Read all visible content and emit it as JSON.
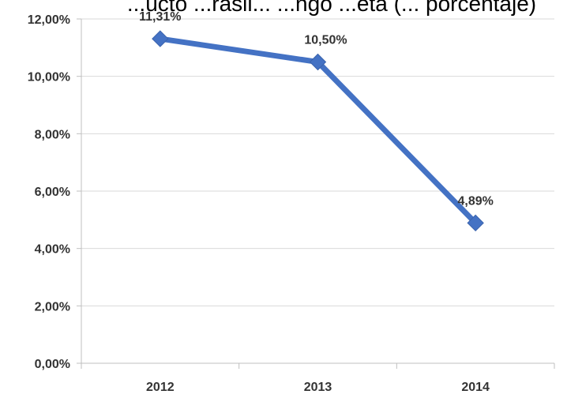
{
  "chart_data": {
    "type": "line",
    "title": "...ucto ...rasil... ...ngo ...eta (... porcentaje)",
    "categories": [
      "2012",
      "2013",
      "2014"
    ],
    "series": [
      {
        "values": [
          11.31,
          10.5,
          4.89
        ],
        "data_labels": [
          "11,31%",
          "10,50%",
          "4,89%"
        ],
        "color": "#4472C4"
      }
    ],
    "ylim": [
      0,
      12
    ],
    "yticks": [
      0,
      2,
      4,
      6,
      8,
      10,
      12
    ],
    "ytick_labels": [
      "0,00%",
      "2,00%",
      "4,00%",
      "6,00%",
      "8,00%",
      "10,00%",
      "12,00%"
    ],
    "grid": true,
    "xlabel": "",
    "ylabel": "",
    "legend": "none"
  }
}
